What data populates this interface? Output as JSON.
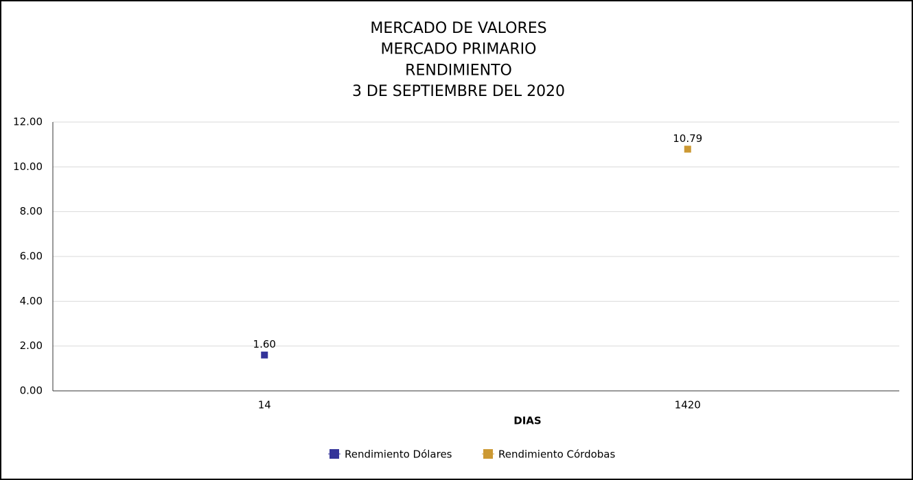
{
  "chart_data": {
    "type": "scatter",
    "title": [
      "MERCADO DE VALORES",
      "MERCADO PRIMARIO",
      "RENDIMIENTO",
      "3 DE SEPTIEMBRE DEL 2020"
    ],
    "x_label": "DIAS",
    "categories": [
      "14",
      "1420"
    ],
    "series": [
      {
        "name": "Rendimiento Dólares",
        "color": "#333399",
        "values": [
          1.6,
          null
        ],
        "value_labels": [
          "1.60",
          null
        ]
      },
      {
        "name": "Rendimiento Córdobas",
        "color": "#cc9933",
        "values": [
          null,
          10.79
        ],
        "value_labels": [
          null,
          "10.79"
        ]
      }
    ],
    "ylim": [
      0,
      12
    ],
    "yticks": [
      {
        "value": 0,
        "label": "0.00"
      },
      {
        "value": 2,
        "label": "2.00"
      },
      {
        "value": 4,
        "label": "4.00"
      },
      {
        "value": 6,
        "label": "6.00"
      },
      {
        "value": 8,
        "label": "8.00"
      },
      {
        "value": 10,
        "label": "10.00"
      },
      {
        "value": 12,
        "label": "12.00"
      }
    ],
    "grid": true,
    "legend": "bottom"
  }
}
